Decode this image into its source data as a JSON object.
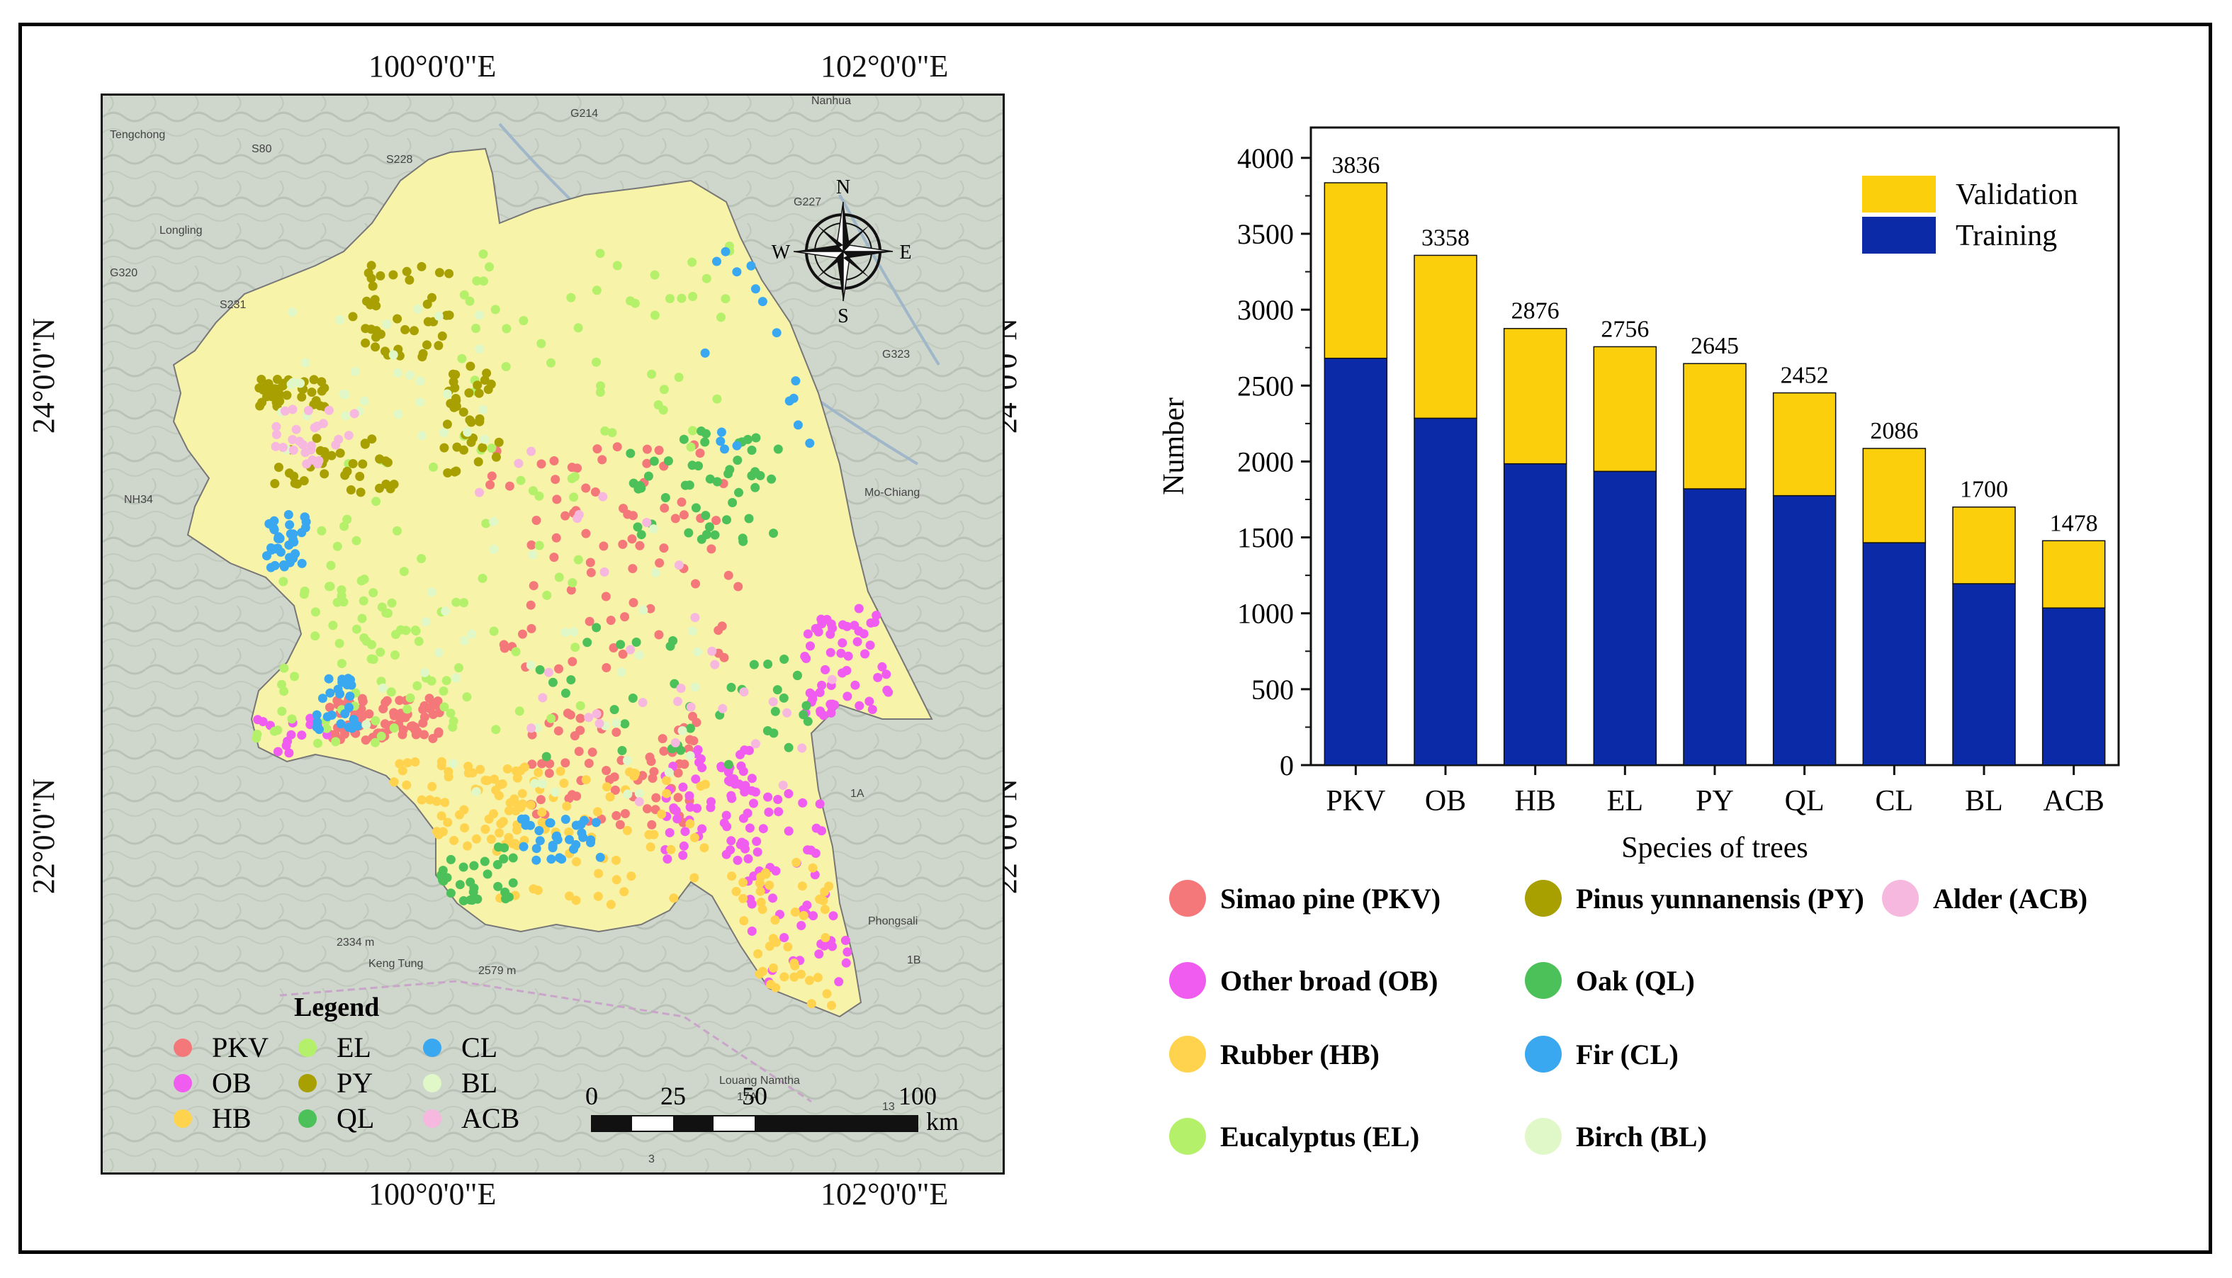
{
  "map": {
    "top_lon_labels": [
      "100°0'0\"E",
      "102°0'0\"E"
    ],
    "bottom_lon_labels": [
      "100°0'0\"E",
      "102°0'0\"E"
    ],
    "left_lat_labels": [
      "24°0'0\"N",
      "22°0'0\"N"
    ],
    "right_lat_labels": [
      "24°0'0\"N",
      "22°0'0\"N"
    ],
    "compass": {
      "n": "N",
      "s": "S",
      "e": "E",
      "w": "W"
    },
    "place_names": [
      "Tengchong",
      "Longling",
      "Nanhua",
      "Mo-Chiang",
      "Phongsali",
      "Keng Tung",
      "Louang Namtha",
      "G227",
      "G323",
      "G214",
      "S80",
      "S228",
      "S231",
      "G320",
      "NH34",
      "1A",
      "1B",
      "17A",
      "13",
      "3",
      "2334 m",
      "2579 m"
    ],
    "legend": {
      "title": "Legend",
      "items": [
        {
          "code": "PKV",
          "color": "#f4787a"
        },
        {
          "code": "OB",
          "color": "#f15cf0"
        },
        {
          "code": "HB",
          "color": "#ffd34d"
        },
        {
          "code": "EL",
          "color": "#b4f06a"
        },
        {
          "code": "PY",
          "color": "#a8a000"
        },
        {
          "code": "QL",
          "color": "#4cc15a"
        },
        {
          "code": "CL",
          "color": "#3aa8f0"
        },
        {
          "code": "BL",
          "color": "#e0f7c8"
        },
        {
          "code": "ACB",
          "color": "#f7b8df"
        }
      ]
    },
    "scalebar": {
      "ticks": [
        "0",
        "25",
        "50",
        "100"
      ],
      "unit": "km"
    },
    "colors": {
      "region": "#f7f3a9",
      "terrain": "#cdd3c9"
    }
  },
  "chart_data": {
    "type": "bar",
    "stacked": true,
    "categories": [
      "PKV",
      "OB",
      "HB",
      "EL",
      "PY",
      "QL",
      "CL",
      "BL",
      "ACB"
    ],
    "series": [
      {
        "name": "Training",
        "color": "#0a2aa8",
        "values": [
          2680,
          2285,
          1985,
          1935,
          1820,
          1775,
          1465,
          1195,
          1035
        ]
      },
      {
        "name": "Validation",
        "color": "#fccf0c",
        "values": [
          1156,
          1073,
          891,
          821,
          825,
          677,
          621,
          505,
          443
        ]
      }
    ],
    "totals": [
      3836,
      3358,
      2876,
      2756,
      2645,
      2452,
      2086,
      1700,
      1478
    ],
    "total_labels": [
      "3836",
      "3358",
      "2876",
      "2756",
      "2645",
      "2452",
      "2086",
      "1700",
      "1478"
    ],
    "ylim": [
      0,
      4200
    ],
    "yticks": [
      0,
      500,
      1000,
      1500,
      2000,
      2500,
      3000,
      3500,
      4000
    ],
    "xlabel": "Species of trees",
    "ylabel": "Number",
    "legend_position": "top-right",
    "grid": false
  },
  "species_legend": [
    {
      "label": "Simao pine (PKV)",
      "color": "#f4787a"
    },
    {
      "label": "Pinus yunnanensis (PY)",
      "color": "#a8a000"
    },
    {
      "label": "Alder (ACB)",
      "color": "#f7b8df"
    },
    {
      "label": "Other broad (OB)",
      "color": "#f15cf0"
    },
    {
      "label": "Oak (QL)",
      "color": "#4cc15a"
    },
    {
      "label": "Rubber (HB)",
      "color": "#ffd34d"
    },
    {
      "label": "Fir (CL)",
      "color": "#3aa8f0"
    },
    {
      "label": "Eucalyptus (EL)",
      "color": "#b4f06a"
    },
    {
      "label": "Birch (BL)",
      "color": "#e0f7c8"
    }
  ]
}
